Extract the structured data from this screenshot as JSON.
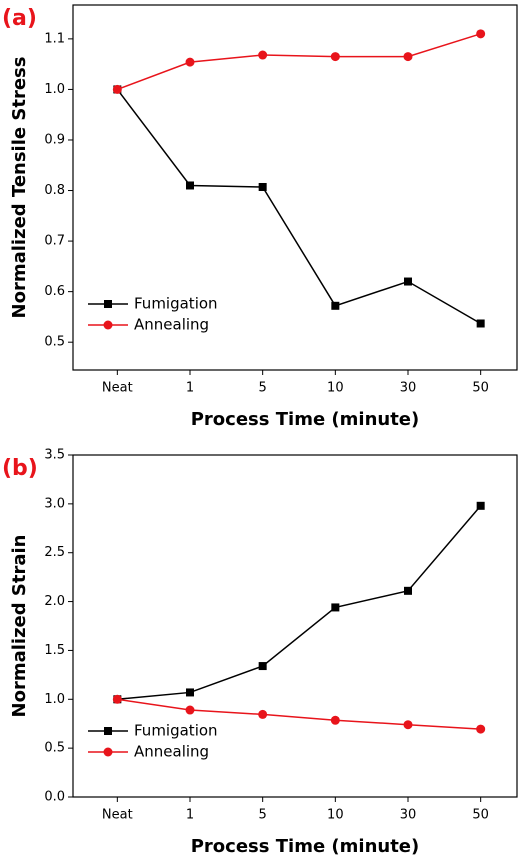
{
  "chart_data": [
    {
      "type": "line",
      "panel_label": "(a)",
      "x_label": "Process Time (minute)",
      "y_label": "Normalized Tensile Stress",
      "categories": [
        "Neat",
        "1",
        "5",
        "10",
        "30",
        "50"
      ],
      "series": [
        {
          "name": "Fumigation",
          "color": "#000000",
          "marker": "square",
          "values": [
            1.0,
            0.81,
            0.807,
            0.572,
            0.62,
            0.537
          ]
        },
        {
          "name": "Annealing",
          "color": "#e8141b",
          "marker": "circle",
          "values": [
            1.0,
            1.054,
            1.068,
            1.065,
            1.065,
            1.11
          ]
        }
      ],
      "ylim": [
        0.445,
        1.167
      ],
      "yticks": [
        0.5,
        0.6,
        0.7,
        0.8,
        0.9,
        {
          "value": 1.0,
          "label": "1.0"
        },
        1.1
      ],
      "legend": "lower left"
    },
    {
      "type": "line",
      "panel_label": "(b)",
      "x_label": "Process Time (minute)",
      "y_label": "Normalized Strain",
      "categories": [
        "Neat",
        "1",
        "5",
        "10",
        "30",
        "50"
      ],
      "series": [
        {
          "name": "Fumigation",
          "color": "#000000",
          "marker": "square",
          "values": [
            1.0,
            1.07,
            1.34,
            1.94,
            2.11,
            2.98
          ]
        },
        {
          "name": "Annealing",
          "color": "#e8141b",
          "marker": "circle",
          "values": [
            1.0,
            0.89,
            0.845,
            0.785,
            0.74,
            0.695
          ]
        }
      ],
      "ylim": [
        0,
        3.5
      ],
      "yticks": [
        {
          "value": 0,
          "label": "0.0"
        },
        0.5,
        {
          "value": 1,
          "label": "1.0"
        },
        1.5,
        {
          "value": 2,
          "label": "2.0"
        },
        2.5,
        {
          "value": 3,
          "label": "3.0"
        },
        3.5
      ],
      "legend": "lower left"
    }
  ]
}
